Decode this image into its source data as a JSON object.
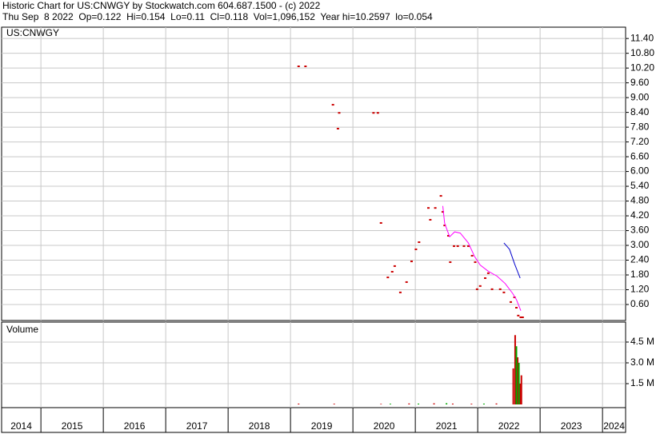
{
  "header": {
    "title": "Historic Chart for US:CNWGY by Stockwatch.com 604.687.1500 - (c) 2022",
    "quote": "Thu Sep  8 2022  Op=0.122  Hi=0.154  Lo=0.11  Cl=0.118  Vol=1,096,152  Year hi=10.2597  lo=0.054"
  },
  "chart_data": [
    {
      "type": "scatter",
      "title": "US:CNWGY",
      "xlim": [
        2014.37,
        2024.37
      ],
      "xticks": [
        2015,
        2016,
        2017,
        2018,
        2019,
        2020,
        2021,
        2022,
        2023,
        2024
      ],
      "ylim": [
        -0.05,
        11.86
      ],
      "yticks": [
        {
          "value": 0.6,
          "label": "0.60"
        },
        {
          "value": 1.2,
          "label": "1.20"
        },
        {
          "value": 1.8,
          "label": "1.80"
        },
        {
          "value": 2.4,
          "label": "2.40"
        },
        {
          "value": 3.0,
          "label": "3.00"
        },
        {
          "value": 3.6,
          "label": "3.60"
        },
        {
          "value": 4.2,
          "label": "4.20"
        },
        {
          "value": 4.8,
          "label": "4.80"
        },
        {
          "value": 5.4,
          "label": "5.40"
        },
        {
          "value": 6.0,
          "label": "6.00"
        },
        {
          "value": 6.6,
          "label": "6.60"
        },
        {
          "value": 7.2,
          "label": "7.20"
        },
        {
          "value": 7.8,
          "label": "7.80"
        },
        {
          "value": 8.4,
          "label": "8.40"
        },
        {
          "value": 9.0,
          "label": "9.00"
        },
        {
          "value": 9.6,
          "label": "9.60"
        },
        {
          "value": 10.2,
          "label": "10.20"
        },
        {
          "value": 10.8,
          "label": "10.80"
        },
        {
          "value": 11.4,
          "label": "11.40"
        }
      ],
      "grid": true,
      "series": [
        {
          "style": "points",
          "color": "#cc0000",
          "x": [
            2019.13,
            2019.24,
            2019.68,
            2019.78,
            2019.76,
            2020.33,
            2020.4,
            2020.45,
            2020.56,
            2020.63,
            2020.67,
            2020.76,
            2020.86,
            2020.94,
            2021.01,
            2021.06,
            2021.21,
            2021.24,
            2021.32,
            2021.41,
            2021.44,
            2021.47,
            2021.53,
            2021.56,
            2021.62,
            2021.68,
            2021.78,
            2021.85,
            2021.91,
            2021.96,
            2021.99,
            2022.04,
            2022.12,
            2022.17,
            2022.23,
            2022.36,
            2022.42,
            2022.53,
            2022.59,
            2022.62,
            2022.65,
            2022.69,
            2022.72
          ],
          "values": [
            10.27,
            10.27,
            8.71,
            8.38,
            7.74,
            8.38,
            8.38,
            3.91,
            1.7,
            1.93,
            2.16,
            1.09,
            1.51,
            2.35,
            2.84,
            3.13,
            4.52,
            4.04,
            4.52,
            5.01,
            4.36,
            3.81,
            3.39,
            2.32,
            2.97,
            2.97,
            2.97,
            2.97,
            2.58,
            2.32,
            1.22,
            1.35,
            1.67,
            1.87,
            1.22,
            1.22,
            1.09,
            0.7,
            0.89,
            0.47,
            0.15,
            0.08,
            0.08
          ]
        },
        {
          "style": "line",
          "color": "#ff00ff",
          "x": [
            2021.44,
            2021.47,
            2021.55,
            2021.63,
            2021.72,
            2021.85,
            2021.95,
            2022.04,
            2022.17,
            2022.31,
            2022.44,
            2022.56,
            2022.62,
            2022.69
          ],
          "values": [
            4.6,
            3.9,
            3.35,
            3.55,
            3.5,
            3.1,
            2.55,
            2.2,
            1.95,
            1.75,
            1.45,
            1.05,
            0.8,
            0.35
          ]
        },
        {
          "style": "line",
          "color": "#0000cc",
          "x": [
            2022.42,
            2022.51,
            2022.59,
            2022.68
          ],
          "values": [
            3.1,
            2.84,
            2.25,
            1.67
          ]
        }
      ]
    },
    {
      "type": "bar",
      "title": "Volume",
      "xlim": [
        2014.37,
        2024.37
      ],
      "xticks": [
        2014,
        2015,
        2016,
        2017,
        2018,
        2019,
        2020,
        2021,
        2022,
        2023,
        2024
      ],
      "ylim": [
        -230000,
        5940000
      ],
      "yticks": [
        {
          "value": 1500000,
          "label": "1.5 M"
        },
        {
          "value": 3000000,
          "label": "3.0 M"
        },
        {
          "value": 4500000,
          "label": "4.5 M"
        }
      ],
      "grid": true,
      "series": [
        {
          "color": "#cc0000",
          "x": [
            2019.13,
            2019.7,
            2020.45,
            2020.9,
            2021.3,
            2021.6,
            2021.9,
            2022.3,
            2022.57,
            2022.6,
            2022.64,
            2022.68,
            2022.7
          ],
          "values": [
            60000,
            50000,
            40000,
            70000,
            80000,
            60000,
            50000,
            70000,
            2600000,
            5000000,
            3400000,
            1500000,
            2100000
          ]
        },
        {
          "color": "#00aa00",
          "x": [
            2020.6,
            2021.05,
            2021.5,
            2022.1,
            2022.62,
            2022.66
          ],
          "values": [
            50000,
            60000,
            90000,
            60000,
            4200000,
            3000000
          ]
        }
      ]
    }
  ]
}
